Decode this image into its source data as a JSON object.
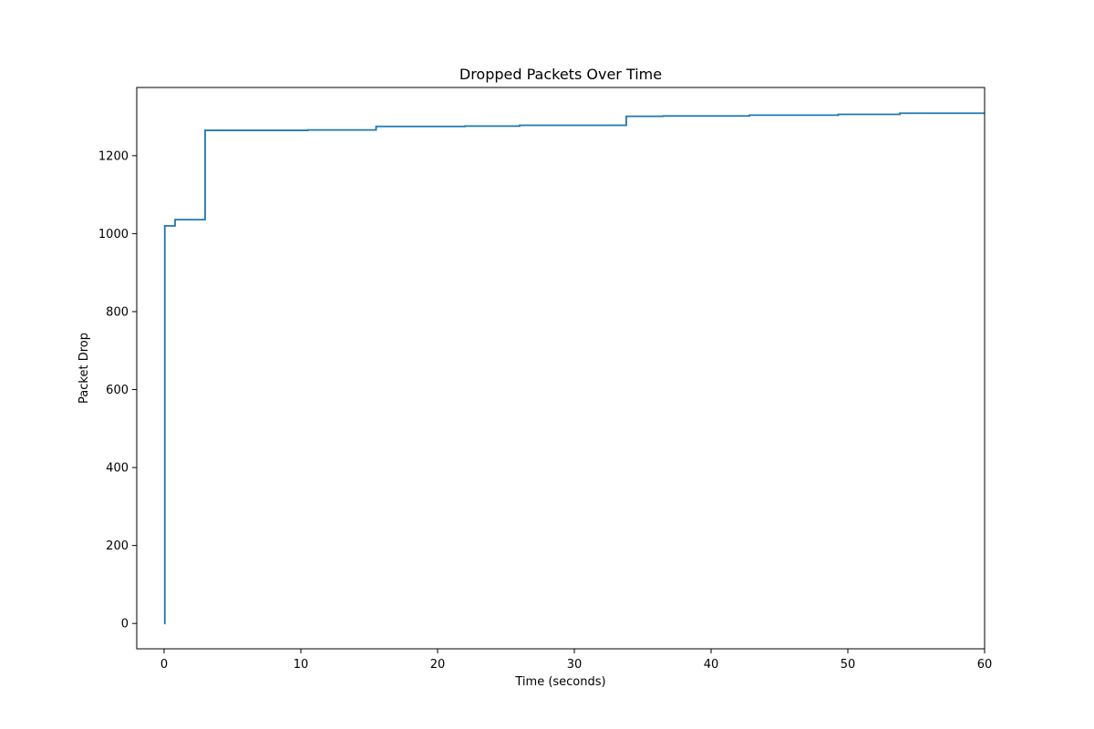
{
  "chart_data": {
    "type": "line",
    "title": "Dropped Packets Over Time",
    "xlabel": "Time (seconds)",
    "ylabel": "Packet Drop",
    "xlim": [
      -2,
      60
    ],
    "ylim": [
      -65,
      1375
    ],
    "xticks": [
      0,
      10,
      20,
      30,
      40,
      50,
      60
    ],
    "yticks": [
      0,
      200,
      400,
      600,
      800,
      1000,
      1200
    ],
    "grid": false,
    "step": "post",
    "series": [
      {
        "color": "#1f77b4",
        "x": [
          0.0,
          0.05,
          0.8,
          3.0,
          10.5,
          15.5,
          22.0,
          26.0,
          33.8,
          36.5,
          42.8,
          49.3,
          53.8,
          60.0
        ],
        "y": [
          0,
          1020,
          1036,
          1265,
          1266,
          1275,
          1276,
          1278,
          1301,
          1302,
          1304,
          1306,
          1309,
          1309
        ]
      }
    ]
  }
}
